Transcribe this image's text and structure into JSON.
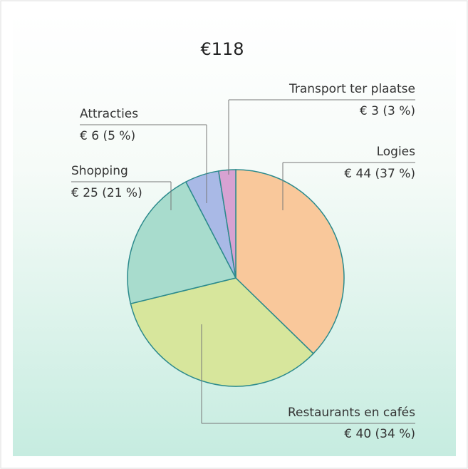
{
  "chart_data": {
    "type": "pie",
    "title": "€118",
    "categories": [
      "Logies",
      "Restaurants en cafés",
      "Shopping",
      "Attracties",
      "Transport ter plaatse"
    ],
    "values": [
      44,
      40,
      25,
      6,
      3
    ],
    "value_labels": [
      "€ 44 (37 %)",
      "€ 40 (34 %)",
      "€ 25 (21 %)",
      "€ 6 (5 %)",
      "€ 3 (3 %)"
    ],
    "colors": [
      "#f9c89b",
      "#d7e69c",
      "#a8dccd",
      "#a9b9e6",
      "#d7a2d2"
    ]
  }
}
